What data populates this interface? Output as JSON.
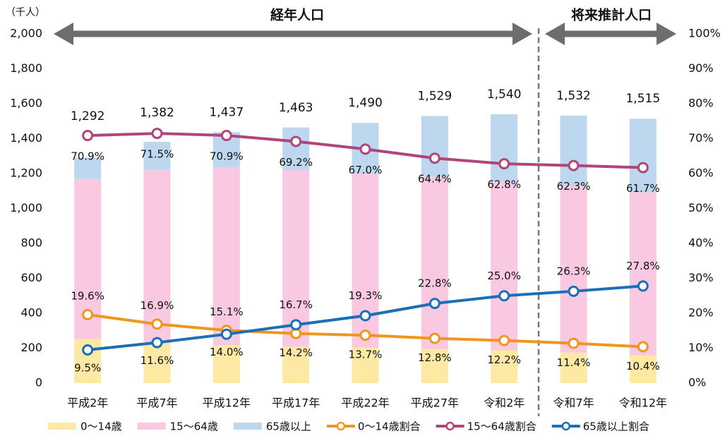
{
  "chart_data": {
    "type": "bar",
    "unit_label": "（千人）",
    "annotations": [
      "経年人口",
      "将来推計人口"
    ],
    "categories": [
      "平成2年",
      "平成7年",
      "平成12年",
      "平成17年",
      "平成22年",
      "平成27年",
      "令和2年",
      "令和7年",
      "令和12年"
    ],
    "series": [
      {
        "name": "0～14歳",
        "color": "#fde9a3",
        "values": [
          253,
          234,
          217,
          208,
          204,
          196,
          188,
          175,
          158
        ]
      },
      {
        "name": "15～64歳",
        "color": "#f9c8e1",
        "values": [
          916,
          988,
          1019,
          1012,
          998,
          985,
          967,
          954,
          935
        ]
      },
      {
        "name": "65歳以上",
        "color": "#bdd7ee",
        "values": [
          123,
          160,
          201,
          244,
          288,
          349,
          385,
          403,
          421
        ]
      },
      {
        "name": "0～14歳割合",
        "color": "#f0961e",
        "axis": "y2",
        "values": [
          19.6,
          16.9,
          15.1,
          14.2,
          13.7,
          12.8,
          12.2,
          11.4,
          10.4
        ],
        "value_labels": [
          "19.6%",
          "16.9%",
          "15.1%",
          "14.2%",
          "13.7%",
          "12.8%",
          "12.2%",
          "11.4%",
          "10.4%"
        ]
      },
      {
        "name": "15～64歳割合",
        "color": "#b0457a",
        "axis": "y2",
        "values": [
          70.9,
          71.5,
          70.9,
          69.2,
          67.0,
          64.4,
          62.8,
          62.3,
          61.7
        ],
        "value_labels": [
          "70.9%",
          "71.5%",
          "70.9%",
          "69.2%",
          "67.0%",
          "64.4%",
          "62.8%",
          "62.3%",
          "61.7%"
        ]
      },
      {
        "name": "65歳以上割合",
        "color": "#1a6fb8",
        "axis": "y2",
        "values": [
          9.5,
          11.6,
          14.0,
          16.7,
          19.3,
          22.8,
          25.0,
          26.3,
          27.8
        ],
        "value_labels": [
          "9.5%",
          "11.6%",
          "14.0%",
          "16.7%",
          "19.3%",
          "22.8%",
          "25.0%",
          "26.3%",
          "27.8%"
        ]
      }
    ],
    "totals": [
      1292,
      1382,
      1437,
      1463,
      1490,
      1529,
      1540,
      1532,
      1515
    ],
    "total_labels": [
      "1,292",
      "1,382",
      "1,437",
      "1,463",
      "1,490",
      "1,529",
      "1,540",
      "1,532",
      "1,515"
    ],
    "ylim": [
      0,
      2000
    ],
    "yticks": [
      0,
      200,
      400,
      600,
      800,
      {
        "value": 1000,
        "label": "1,000"
      },
      {
        "value": 1200,
        "label": "1,200"
      },
      {
        "value": 1400,
        "label": "1,400"
      },
      {
        "value": 1600,
        "label": "1,600"
      },
      {
        "value": 1800,
        "label": "1,800"
      },
      {
        "value": 2000,
        "label": "2,000"
      }
    ],
    "y2lim": [
      0,
      100
    ],
    "y2ticks": [
      {
        "value": 0,
        "label": "0%"
      },
      {
        "value": 10,
        "label": "10%"
      },
      {
        "value": 20,
        "label": "20%"
      },
      {
        "value": 30,
        "label": "30%"
      },
      {
        "value": 40,
        "label": "40%"
      },
      {
        "value": 50,
        "label": "50%"
      },
      {
        "value": 60,
        "label": "60%"
      },
      {
        "value": 70,
        "label": "70%"
      },
      {
        "value": 80,
        "label": "80%"
      },
      {
        "value": 90,
        "label": "90%"
      },
      {
        "value": 100,
        "label": "100%"
      }
    ],
    "legend": "bottom"
  }
}
